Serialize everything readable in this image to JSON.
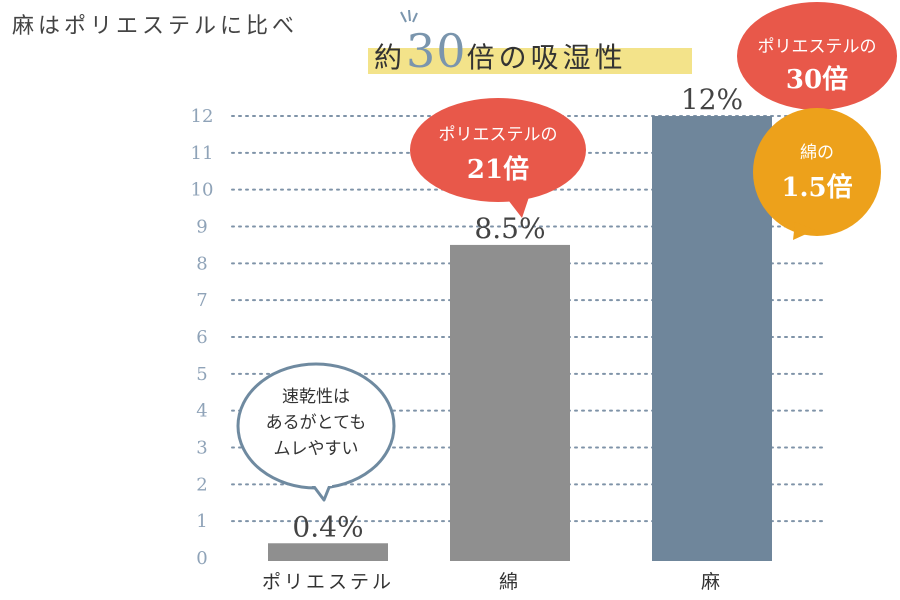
{
  "page_title": "麻はポリエステルに比べ",
  "headline": {
    "prefix": "約",
    "number": "30",
    "suffix": "倍の吸湿性"
  },
  "colors": {
    "gray_bar": "#8f8f8f",
    "blue_bar": "#6f869b",
    "red": "#e8584a",
    "orange": "#eda11b",
    "highlight": "#f3e38a",
    "axis_text": "#8fa3b8"
  },
  "chart_data": {
    "type": "bar",
    "title": "",
    "xlabel": "",
    "ylabel": "",
    "ylim": [
      0,
      12
    ],
    "yticks": [
      0,
      1,
      2,
      3,
      4,
      5,
      6,
      7,
      8,
      9,
      10,
      11,
      12
    ],
    "grid": true,
    "categories": [
      "ポリエステル",
      "綿",
      "麻"
    ],
    "values": [
      0.4,
      8.5,
      12
    ],
    "value_labels": [
      "0.4%",
      "8.5%",
      "12%"
    ]
  },
  "callouts": {
    "polyester_note": [
      "速乾性は",
      "あるがとても",
      "ムレやすい"
    ],
    "cotton_vs_polyester": {
      "line1": "ポリエステルの",
      "line2": "21倍"
    },
    "linen_vs_polyester": {
      "line1": "ポリエステルの",
      "line2": "30倍"
    },
    "linen_vs_cotton": {
      "line1": "綿の",
      "line2": "1.5倍"
    }
  }
}
